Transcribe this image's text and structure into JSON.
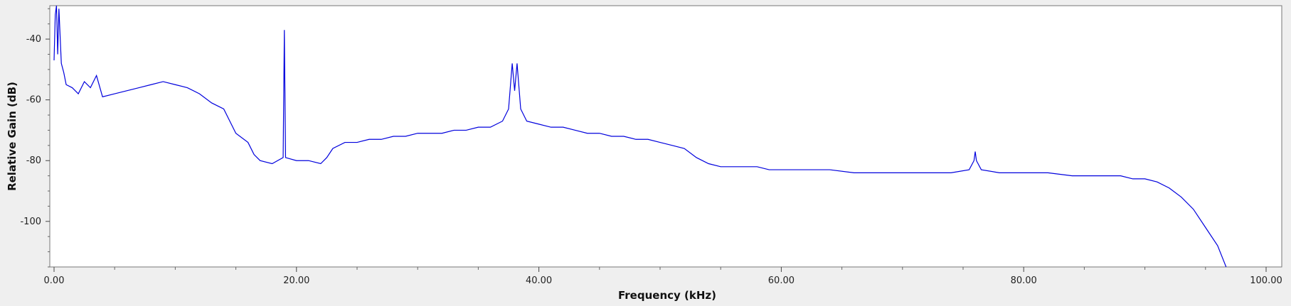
{
  "chart_data": {
    "type": "line",
    "title": "",
    "xlabel": "Frequency (kHz)",
    "ylabel": "Relative Gain (dB)",
    "xlim": [
      0,
      100
    ],
    "ylim": [
      -115,
      -29
    ],
    "x_ticks": [
      {
        "value": 0,
        "label": "0.00"
      },
      {
        "value": 20,
        "label": "20.00"
      },
      {
        "value": 40,
        "label": "40.00"
      },
      {
        "value": 60,
        "label": "60.00"
      },
      {
        "value": 80,
        "label": "80.00"
      },
      {
        "value": 100,
        "label": "100.00"
      }
    ],
    "y_ticks": [
      {
        "value": -40,
        "label": "-40"
      },
      {
        "value": -60,
        "label": "-60"
      },
      {
        "value": -80,
        "label": "-80"
      },
      {
        "value": -100,
        "label": "-100"
      }
    ],
    "grid": false,
    "background": "#ffffff",
    "series": [
      {
        "color": "#0000dd",
        "points": [
          [
            0,
            -47
          ],
          [
            0.1,
            -32
          ],
          [
            0.2,
            -29
          ],
          [
            0.3,
            -45
          ],
          [
            0.4,
            -30
          ],
          [
            0.6,
            -48
          ],
          [
            0.8,
            -51
          ],
          [
            1,
            -55
          ],
          [
            1.5,
            -56
          ],
          [
            2,
            -58
          ],
          [
            2.5,
            -54
          ],
          [
            3,
            -56
          ],
          [
            3.5,
            -52
          ],
          [
            4,
            -59
          ],
          [
            5,
            -58
          ],
          [
            6,
            -57
          ],
          [
            7,
            -56
          ],
          [
            8,
            -55
          ],
          [
            9,
            -54
          ],
          [
            10,
            -55
          ],
          [
            11,
            -56
          ],
          [
            12,
            -58
          ],
          [
            13,
            -61
          ],
          [
            14,
            -63
          ],
          [
            14.5,
            -67
          ],
          [
            15,
            -71
          ],
          [
            16,
            -74
          ],
          [
            16.5,
            -78
          ],
          [
            17,
            -80
          ],
          [
            18,
            -81
          ],
          [
            18.9,
            -79
          ],
          [
            19.0,
            -37
          ],
          [
            19.1,
            -79
          ],
          [
            20,
            -80
          ],
          [
            21,
            -80
          ],
          [
            22,
            -81
          ],
          [
            22.5,
            -79
          ],
          [
            23,
            -76
          ],
          [
            24,
            -74
          ],
          [
            25,
            -74
          ],
          [
            26,
            -73
          ],
          [
            27,
            -73
          ],
          [
            28,
            -72
          ],
          [
            29,
            -72
          ],
          [
            30,
            -71
          ],
          [
            31,
            -71
          ],
          [
            32,
            -71
          ],
          [
            33,
            -70
          ],
          [
            34,
            -70
          ],
          [
            35,
            -69
          ],
          [
            36,
            -69
          ],
          [
            37,
            -67
          ],
          [
            37.5,
            -63
          ],
          [
            37.8,
            -48
          ],
          [
            38.0,
            -57
          ],
          [
            38.2,
            -48
          ],
          [
            38.5,
            -63
          ],
          [
            39,
            -67
          ],
          [
            40,
            -68
          ],
          [
            41,
            -69
          ],
          [
            42,
            -69
          ],
          [
            43,
            -70
          ],
          [
            44,
            -71
          ],
          [
            45,
            -71
          ],
          [
            46,
            -72
          ],
          [
            47,
            -72
          ],
          [
            48,
            -73
          ],
          [
            49,
            -73
          ],
          [
            50,
            -74
          ],
          [
            51,
            -75
          ],
          [
            52,
            -76
          ],
          [
            53,
            -79
          ],
          [
            54,
            -81
          ],
          [
            55,
            -82
          ],
          [
            56,
            -82
          ],
          [
            57,
            -82
          ],
          [
            58,
            -82
          ],
          [
            59,
            -83
          ],
          [
            60,
            -83
          ],
          [
            62,
            -83
          ],
          [
            64,
            -83
          ],
          [
            66,
            -84
          ],
          [
            68,
            -84
          ],
          [
            70,
            -84
          ],
          [
            72,
            -84
          ],
          [
            74,
            -84
          ],
          [
            75.5,
            -83
          ],
          [
            75.9,
            -80
          ],
          [
            76.0,
            -77
          ],
          [
            76.1,
            -80
          ],
          [
            76.5,
            -83
          ],
          [
            78,
            -84
          ],
          [
            80,
            -84
          ],
          [
            82,
            -84
          ],
          [
            84,
            -85
          ],
          [
            86,
            -85
          ],
          [
            88,
            -85
          ],
          [
            89,
            -86
          ],
          [
            90,
            -86
          ],
          [
            91,
            -87
          ],
          [
            92,
            -89
          ],
          [
            93,
            -92
          ],
          [
            94,
            -96
          ],
          [
            95,
            -102
          ],
          [
            96,
            -108
          ],
          [
            96.5,
            -113
          ],
          [
            96.7,
            -115
          ]
        ]
      }
    ]
  }
}
